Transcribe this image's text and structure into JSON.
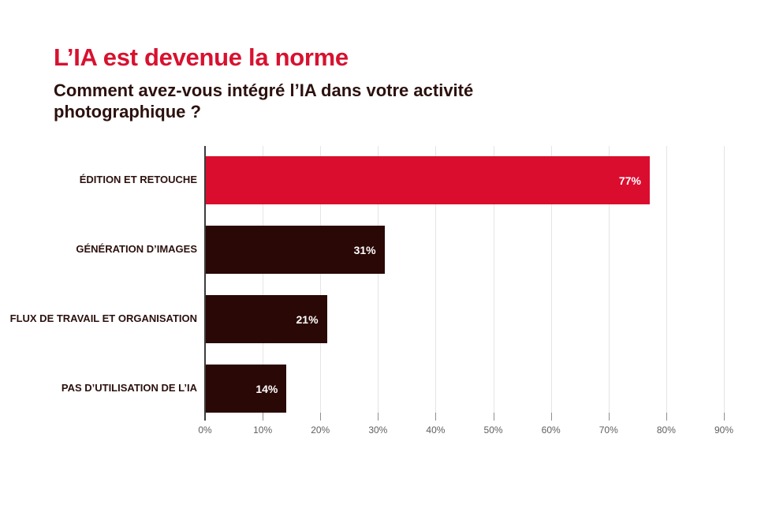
{
  "header": {
    "title": "L’IA est devenue la norme",
    "subtitle": "Comment avez-vous intégré l’IA dans votre activité photographique ?",
    "subtitle_lines": [
      "Comment avez-vous intégré l’IA dans votre activité",
      "photographique ?"
    ]
  },
  "chart_data": {
    "type": "bar",
    "orientation": "horizontal",
    "title": "L’IA est devenue la norme",
    "subtitle": "Comment avez-vous intégré l’IA dans votre activité photographique ?",
    "categories": [
      "ÉDITION ET RETOUCHE",
      "GÉNÉRATION D’IMAGES",
      "FLUX DE TRAVAIL ET ORGANISATION",
      "PAS D’UTILISATION DE L’IA"
    ],
    "values": [
      77,
      31,
      21,
      14
    ],
    "value_labels": [
      "77%",
      "31%",
      "21%",
      "14%"
    ],
    "bar_colors": [
      "#DB0D2F",
      "#2A0805",
      "#2A0805",
      "#2A0805"
    ],
    "x_tick_values": [
      0,
      10,
      20,
      30,
      40,
      50,
      60,
      70,
      80,
      90
    ],
    "x_tick_labels": [
      "0%",
      "10%",
      "20%",
      "30%",
      "40%",
      "50%",
      "60%",
      "70%",
      "80%",
      "90%"
    ],
    "xlim": [
      0,
      90
    ],
    "grid": true,
    "legend": false,
    "value_label_position": "inside-end"
  },
  "colors": {
    "background": "#FFFFFF",
    "title_red": "#D8112F",
    "accent_red": "#DB0D2F",
    "dark_maroon": "#2A0805",
    "text_dark": "#2B110E",
    "tick_text": "#5F5F5F",
    "gridline": "#E4E4E4",
    "axis_line": "#3D3D3D",
    "value_label_text": "#FFFFFF"
  }
}
